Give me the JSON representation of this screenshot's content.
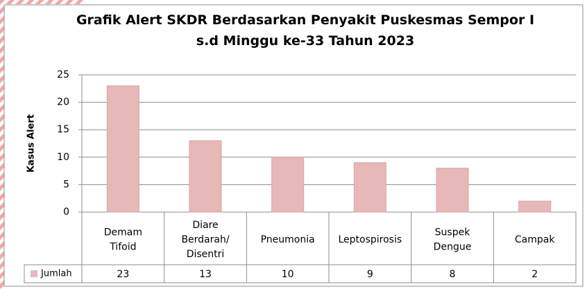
{
  "chart_data": {
    "type": "bar",
    "title": "Grafik  Alert SKDR Berdasarkan Penyakit Puskesmas Sempor I\ns.d Minggu ke-33 Tahun 2023",
    "ylabel": "Kasus Alert",
    "categories": [
      "Demam\nTifoid",
      "Diare\nBerdarah/\nDisentri",
      "Pneumonia",
      "Leptospirosis",
      "Suspek\nDengue",
      "Campak"
    ],
    "series": [
      {
        "name": "Jumlah",
        "color": "#e6b9b8",
        "values": [
          23,
          13,
          10,
          9,
          8,
          2
        ]
      }
    ],
    "ylim": [
      0,
      25
    ],
    "yticks": [
      0,
      5,
      10,
      15,
      20,
      25
    ],
    "grid": true
  }
}
